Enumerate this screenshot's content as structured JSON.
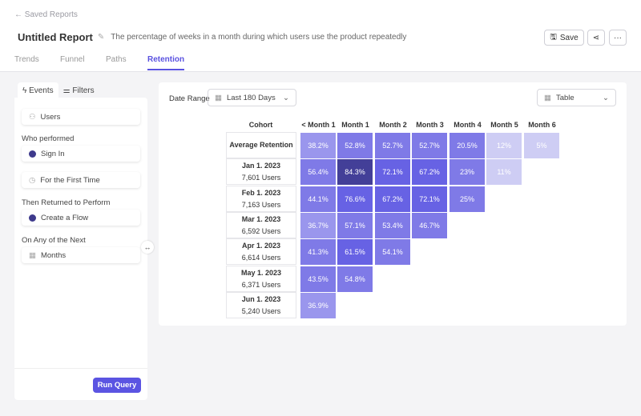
{
  "header": {
    "back_label": "Saved Reports",
    "title": "Untitled Report",
    "description": "The percentage of weeks in a month during which users use the product repeatedly",
    "save_label": "Save",
    "more_label": "···"
  },
  "tabs": [
    "Trends",
    "Funnel",
    "Paths",
    "Retention"
  ],
  "active_tab": "Retention",
  "sidebar": {
    "tabs": [
      "Events",
      "Filters"
    ],
    "users": "Users",
    "who_performed_label": "Who performed",
    "event1": "Sign In",
    "first_time": "For the First Time",
    "returned_label": "Then Returned to Perform",
    "event2": "Create a Flow",
    "next_label": "On Any of the Next",
    "period": "Months",
    "run_label": "Run Query"
  },
  "main": {
    "date_range_label": "Date Range",
    "date_range_value": "Last 180 Days",
    "view_value": "Table"
  },
  "table": {
    "columns": [
      "Cohort",
      "< Month 1",
      "Month 1",
      "Month 2",
      "Month 3",
      "Month 4",
      "Month 5",
      "Month 6"
    ],
    "rows": [
      {
        "date": "Average Retention",
        "users": "",
        "values": [
          "38.2%",
          "52.8%",
          "52.7%",
          "52.7%",
          "20.5%",
          "12%",
          "5%"
        ]
      },
      {
        "date": "Jan 1. 2023",
        "users": "7,601 Users",
        "values": [
          "56.4%",
          "84.3%",
          "72.1%",
          "67.2%",
          "23%",
          "11%"
        ]
      },
      {
        "date": "Feb 1. 2023",
        "users": "7,163 Users",
        "values": [
          "44.1%",
          "76.6%",
          "67.2%",
          "72.1%",
          "25%"
        ]
      },
      {
        "date": "Mar 1. 2023",
        "users": "6,592 Users",
        "values": [
          "36.7%",
          "57.1%",
          "53.4%",
          "46.7%"
        ]
      },
      {
        "date": "Apr 1. 2023",
        "users": "6,614 Users",
        "values": [
          "41.3%",
          "61.5%",
          "54.1%"
        ]
      },
      {
        "date": "May 1. 2023",
        "users": "6,371 Users",
        "values": [
          "43.5%",
          "54.8%"
        ]
      },
      {
        "date": "Jun 1. 2023",
        "users": "5,240 Users",
        "values": [
          "36.9%"
        ]
      }
    ]
  },
  "colors": {
    "accent": "#5b54e2",
    "dark_cell": "#433f98",
    "light_cell": "#cecdf4"
  }
}
